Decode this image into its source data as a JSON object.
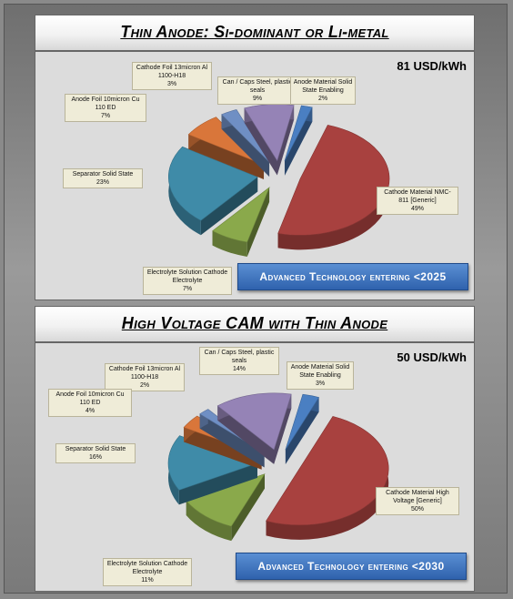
{
  "chart_data": [
    {
      "type": "pie",
      "title": "Thin Anode:  Si-dominant or Li-metal",
      "total_label": "81 USD/kWh",
      "banner": "Advanced Technology entering <2025",
      "slices": [
        {
          "label": "Cathode Material NMC-811 [Generic]",
          "value": 49,
          "pct_label": "49%",
          "color": "#a8413f"
        },
        {
          "label": "Electrolyte Solution Cathode Electrolyte",
          "value": 7,
          "pct_label": "7%",
          "color": "#8aa94b"
        },
        {
          "label": "Separator Solid State",
          "value": 23,
          "pct_label": "23%",
          "color": "#3f8ba8"
        },
        {
          "label": "Anode Foil 10micron Cu 110 ED",
          "value": 7,
          "pct_label": "7%",
          "color": "#d9763a"
        },
        {
          "label": "Cathode Foil 13micron Al 1100-H18",
          "value": 3,
          "pct_label": "3%",
          "color": "#6f8fc4"
        },
        {
          "label": "Can / Caps  Steel, plastic seals",
          "value": 9,
          "pct_label": "9%",
          "color": "#9583b6"
        },
        {
          "label": "Anode Material Solid State Enabling",
          "value": 2,
          "pct_label": "2%",
          "color": "#4a7fc2"
        }
      ]
    },
    {
      "type": "pie",
      "title": "High Voltage CAM with Thin Anode",
      "total_label": "50 USD/kWh",
      "banner": "Advanced Technology entering <2030",
      "slices": [
        {
          "label": "Cathode Material High Voltage [Generic]",
          "value": 50,
          "pct_label": "50%",
          "color": "#a8413f"
        },
        {
          "label": "Electrolyte Solution Cathode Electrolyte",
          "value": 11,
          "pct_label": "11%",
          "color": "#8aa94b"
        },
        {
          "label": "Separator Solid State",
          "value": 16,
          "pct_label": "16%",
          "color": "#3f8ba8"
        },
        {
          "label": "Anode Foil 10micron Cu 110 ED",
          "value": 4,
          "pct_label": "4%",
          "color": "#d9763a"
        },
        {
          "label": "Cathode Foil 13micron Al 1100-H18",
          "value": 2,
          "pct_label": "2%",
          "color": "#6f8fc4"
        },
        {
          "label": "Can / Caps  Steel, plastic seals",
          "value": 14,
          "pct_label": "14%",
          "color": "#9583b6"
        },
        {
          "label": "Anode Material Solid State Enabling",
          "value": 3,
          "pct_label": "3%",
          "color": "#4a7fc2"
        }
      ]
    }
  ]
}
